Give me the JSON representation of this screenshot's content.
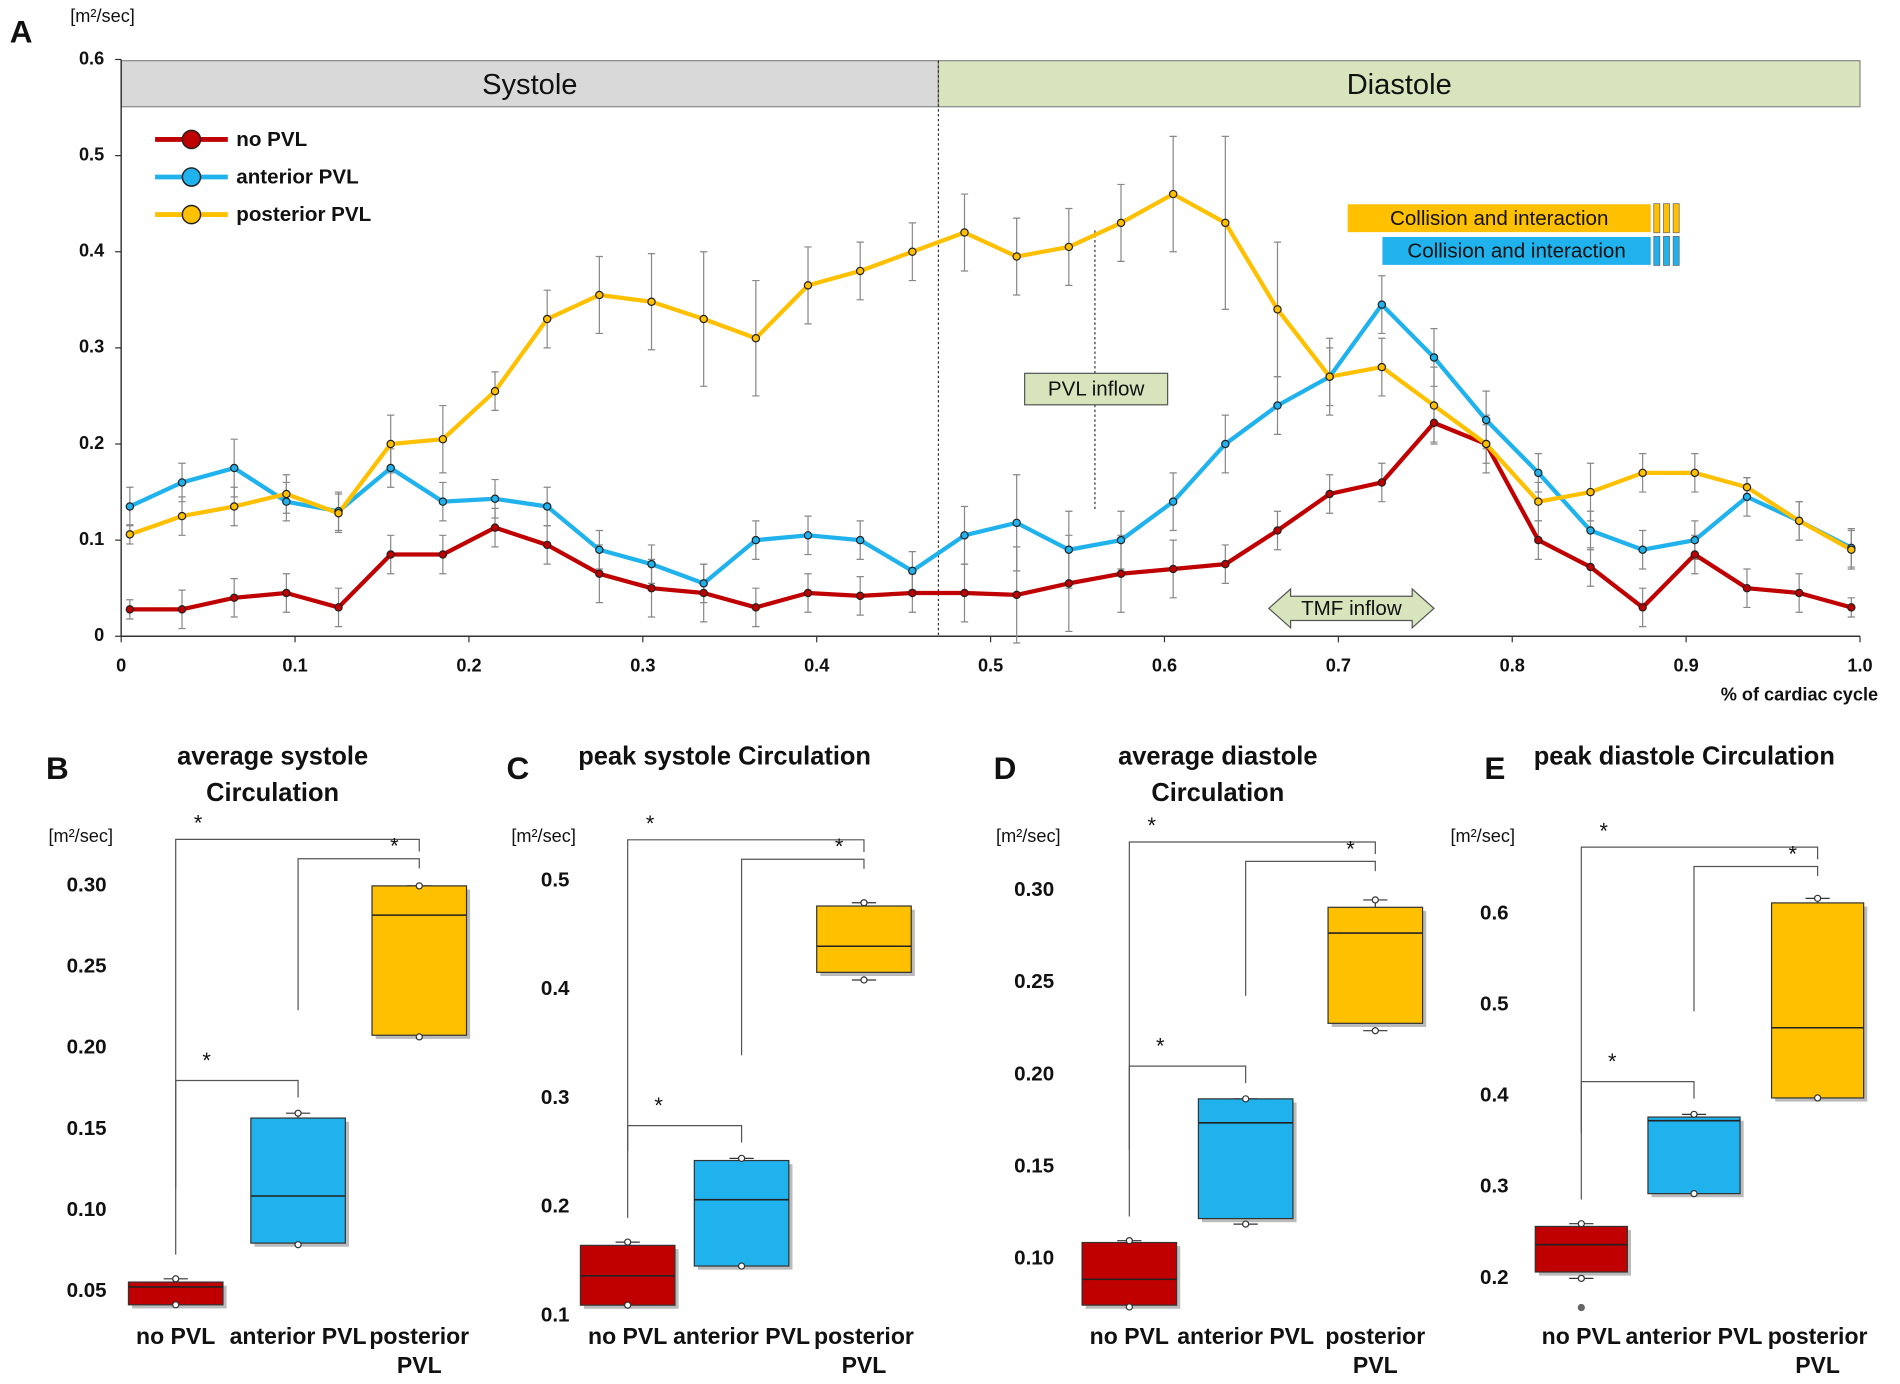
{
  "chart_data": [
    {
      "type": "line",
      "panel_label": "A",
      "y_label": "[m²/sec]",
      "x_label": "% of cardiac cycle",
      "xlim": [
        0,
        1
      ],
      "ylim": [
        0,
        0.6
      ],
      "xticks": [
        0,
        0.1,
        0.2,
        0.3,
        0.4,
        0.5,
        0.6,
        0.7,
        0.8,
        0.9,
        {
          "value": 1,
          "label": "1.0"
        }
      ],
      "yticks": [
        0,
        0.1,
        0.2,
        0.3,
        0.4,
        0.5,
        0.6
      ],
      "legend": "upper left",
      "phases": [
        {
          "label": "Systole",
          "x": [
            0,
            0.47
          ],
          "color": "#d9d9d9"
        },
        {
          "label": "Diastole",
          "x": [
            0.47,
            1
          ],
          "color": "#d8e4bc"
        }
      ],
      "pvl_inflow": {
        "label": "PVL inflow",
        "x": 0.56
      },
      "tmf_inflow": {
        "label": "TMF inflow",
        "x": [
          0.66,
          0.755
        ]
      },
      "collision": [
        {
          "label": "Collision and interaction",
          "color": "#ffc000",
          "x": [
            0.705,
            0.88
          ]
        },
        {
          "label": "Collision and interaction",
          "color": "#1fb2ed",
          "x": [
            0.725,
            0.88
          ]
        }
      ],
      "x": [
        0.005,
        0.035,
        0.065,
        0.095,
        0.125,
        0.155,
        0.185,
        0.215,
        0.245,
        0.275,
        0.305,
        0.335,
        0.365,
        0.395,
        0.425,
        0.455,
        0.485,
        0.515,
        0.545,
        0.575,
        0.605,
        0.635,
        0.665,
        0.695,
        0.725,
        0.755,
        0.785,
        0.815,
        0.845,
        0.875,
        0.905,
        0.935,
        0.965,
        0.995
      ],
      "series": [
        {
          "name": "no PVL",
          "color": "#c00000",
          "values": [
            0.028,
            0.028,
            0.04,
            0.045,
            0.03,
            0.085,
            0.085,
            0.113,
            0.095,
            0.065,
            0.05,
            0.045,
            0.03,
            0.045,
            0.042,
            0.045,
            0.045,
            0.043,
            0.055,
            0.065,
            0.07,
            0.075,
            0.11,
            0.148,
            0.16,
            0.222,
            0.2,
            0.1,
            0.072,
            0.03,
            0.085,
            0.05,
            0.045,
            0.03
          ],
          "errors": [
            0.01,
            0.02,
            0.02,
            0.02,
            0.02,
            0.02,
            0.02,
            0.02,
            0.02,
            0.03,
            0.03,
            0.03,
            0.02,
            0.02,
            0.02,
            0.02,
            0.03,
            0.05,
            0.05,
            0.04,
            0.03,
            0.02,
            0.02,
            0.02,
            0.02,
            0.02,
            0.02,
            0.02,
            0.02,
            0.02,
            0.02,
            0.02,
            0.02,
            0.01
          ]
        },
        {
          "name": "anterior PVL",
          "color": "#1fb2ed",
          "values": [
            0.135,
            0.16,
            0.175,
            0.14,
            0.13,
            0.175,
            0.14,
            0.143,
            0.135,
            0.09,
            0.075,
            0.055,
            0.1,
            0.105,
            0.1,
            0.068,
            0.105,
            0.118,
            0.09,
            0.1,
            0.14,
            0.2,
            0.24,
            0.27,
            0.345,
            0.29,
            0.225,
            0.17,
            0.11,
            0.09,
            0.1,
            0.145,
            0.12,
            0.092
          ],
          "errors": [
            0.02,
            0.02,
            0.03,
            0.02,
            0.02,
            0.02,
            0.02,
            0.02,
            0.02,
            0.02,
            0.02,
            0.02,
            0.02,
            0.02,
            0.02,
            0.02,
            0.03,
            0.05,
            0.04,
            0.03,
            0.03,
            0.03,
            0.03,
            0.03,
            0.03,
            0.03,
            0.03,
            0.02,
            0.02,
            0.02,
            0.02,
            0.02,
            0.02,
            0.02
          ]
        },
        {
          "name": "posterior PVL",
          "color": "#ffc000",
          "values": [
            0.106,
            0.125,
            0.135,
            0.148,
            0.128,
            0.2,
            0.205,
            0.255,
            0.33,
            0.355,
            0.348,
            0.33,
            0.31,
            0.365,
            0.38,
            0.4,
            0.42,
            0.395,
            0.405,
            0.43,
            0.46,
            0.43,
            0.34,
            0.27,
            0.28,
            0.24,
            0.2,
            0.14,
            0.15,
            0.17,
            0.17,
            0.155,
            0.12,
            0.09
          ],
          "errors": [
            0.01,
            0.02,
            0.02,
            0.02,
            0.02,
            0.03,
            0.035,
            0.02,
            0.03,
            0.04,
            0.05,
            0.07,
            0.06,
            0.04,
            0.03,
            0.03,
            0.04,
            0.04,
            0.04,
            0.04,
            0.06,
            0.09,
            0.07,
            0.04,
            0.03,
            0.04,
            0.03,
            0.02,
            0.03,
            0.02,
            0.02,
            0.01,
            0.02,
            0.02
          ]
        }
      ]
    },
    {
      "type": "box",
      "panel_label": "B",
      "title": "average systole Circulation",
      "y_label": "[m²/sec]",
      "categories": [
        "no PVL",
        "anterior PVL",
        "posterior PVL"
      ],
      "colors": [
        "#c00000",
        "#1fb2ed",
        "#ffc000"
      ],
      "min": [
        0.042,
        0.079,
        0.207
      ],
      "q1": [
        0.042,
        0.08,
        0.208
      ],
      "median": [
        0.053,
        0.109,
        0.282
      ],
      "q3": [
        0.056,
        0.157,
        0.3
      ],
      "max": [
        0.058,
        0.16,
        0.3
      ],
      "outliers": [
        [],
        [],
        []
      ],
      "ylim": [
        0.04,
        0.31
      ],
      "yticks": [
        0.05,
        {
          "value": 0.1,
          "label": "0.10"
        },
        0.15,
        {
          "value": 0.2,
          "label": "0.20"
        },
        0.25,
        {
          "value": 0.3,
          "label": "0.30"
        }
      ],
      "annotations": [
        "*",
        "*",
        "*"
      ]
    },
    {
      "type": "box",
      "panel_label": "C",
      "title": "peak systole Circulation",
      "y_label": "[m²/sec]",
      "categories": [
        "no PVL",
        "anterior PVL",
        "posterior PVL"
      ],
      "colors": [
        "#c00000",
        "#1fb2ed",
        "#ffc000"
      ],
      "min": [
        0.11,
        0.146,
        0.409
      ],
      "q1": [
        0.11,
        0.146,
        0.416
      ],
      "median": [
        0.137,
        0.207,
        0.44
      ],
      "q3": [
        0.165,
        0.243,
        0.477
      ],
      "max": [
        0.168,
        0.245,
        0.48
      ],
      "outliers": [
        [],
        [],
        []
      ],
      "ylim": [
        0.095,
        0.51
      ],
      "yticks": [
        0.1,
        0.2,
        0.3,
        0.4,
        0.5
      ],
      "annotations": [
        "*",
        "*",
        "*"
      ]
    },
    {
      "type": "box",
      "panel_label": "D",
      "title": "average diastole Circulation",
      "y_label": "[m²/sec]",
      "categories": [
        "no PVL",
        "anterior PVL",
        "posterior PVL"
      ],
      "colors": [
        "#c00000",
        "#1fb2ed",
        "#ffc000"
      ],
      "min": [
        0.074,
        0.119,
        0.224
      ],
      "q1": [
        0.075,
        0.122,
        0.228
      ],
      "median": [
        0.089,
        0.174,
        0.277
      ],
      "q3": [
        0.109,
        0.187,
        0.291
      ],
      "max": [
        0.11,
        0.187,
        0.295
      ],
      "outliers": [
        [],
        [],
        []
      ],
      "ylim": [
        0.07,
        0.31
      ],
      "yticks": [
        {
          "value": 0.1,
          "label": "0.10"
        },
        0.15,
        {
          "value": 0.2,
          "label": "0.20"
        },
        0.25,
        {
          "value": 0.3,
          "label": "0.30"
        }
      ],
      "annotations": [
        "*",
        "*",
        "*"
      ]
    },
    {
      "type": "box",
      "panel_label": "E",
      "title": "peak diastole Circulation",
      "y_label": "[m²/sec]",
      "categories": [
        "no PVL",
        "anterior PVL",
        "posterior PVL"
      ],
      "colors": [
        "#c00000",
        "#1fb2ed",
        "#ffc000"
      ],
      "min": [
        0.2,
        0.293,
        0.398
      ],
      "q1": [
        0.207,
        0.293,
        0.398
      ],
      "median": [
        0.237,
        0.373,
        0.475
      ],
      "q3": [
        0.257,
        0.377,
        0.612
      ],
      "max": [
        0.26,
        0.38,
        0.617
      ],
      "outliers": [
        [
          0.168
        ],
        [],
        []
      ],
      "ylim": [
        0.16,
        0.64
      ],
      "yticks": [
        0.2,
        0.3,
        0.4,
        0.5,
        0.6
      ],
      "annotations": [
        "*",
        "*",
        "*"
      ]
    }
  ]
}
